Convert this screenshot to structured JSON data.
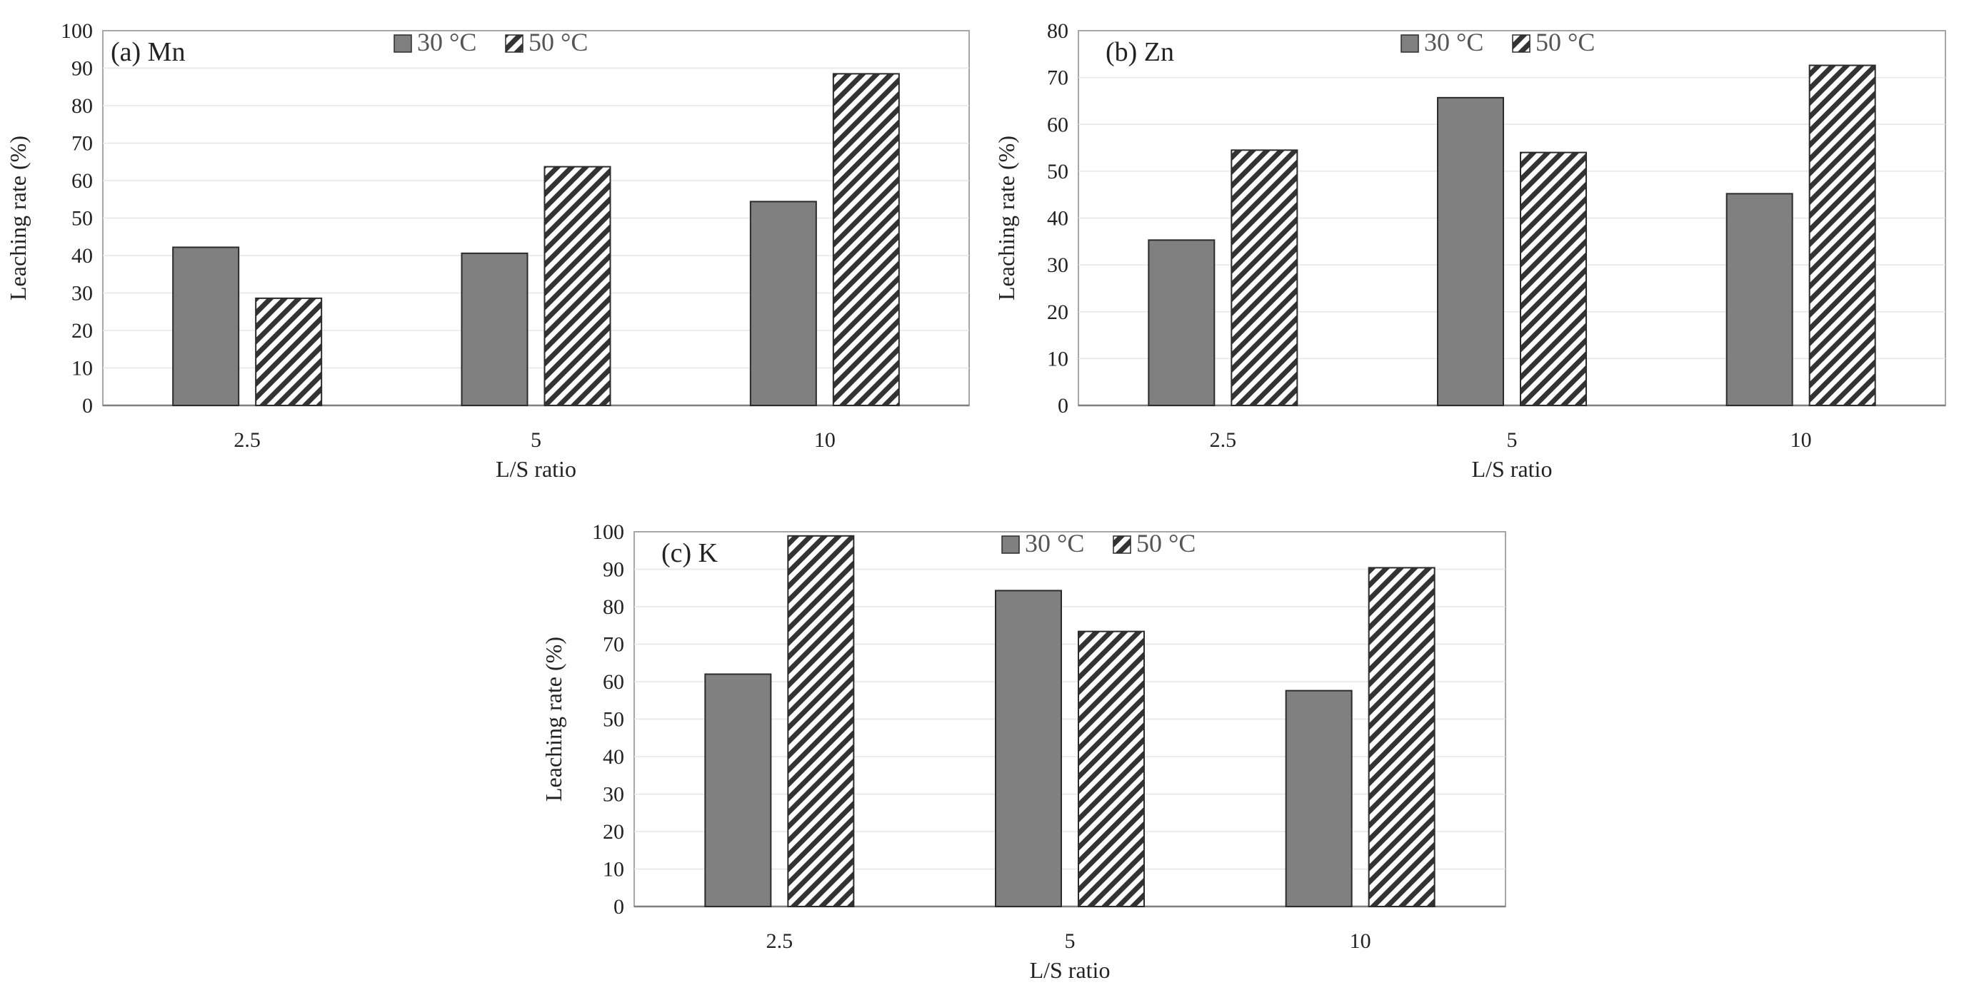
{
  "colors": {
    "bar_30": "#808080",
    "hatch": "#333333",
    "frame": "#a6a6a6",
    "grid": "#e6e6e6",
    "axis": "#7f7f7f"
  },
  "chart_data": [
    {
      "type": "bar",
      "id": "mn",
      "title": "(a) Mn",
      "categories": [
        "2.5",
        "5",
        "10"
      ],
      "series": [
        {
          "name": "30 °C",
          "pattern": "solid",
          "values": [
            42.2,
            40.6,
            54.4
          ]
        },
        {
          "name": "50 °C",
          "pattern": "hatched",
          "values": [
            28.6,
            63.7,
            88.5
          ]
        }
      ],
      "xlabel": "L/S ratio",
      "ylabel": "Leaching rate (%)",
      "ylim": [
        0,
        100
      ],
      "yticks": [
        0,
        10,
        20,
        30,
        40,
        50,
        60,
        70,
        80,
        90,
        100
      ],
      "grid": true,
      "legend": "top-center"
    },
    {
      "type": "bar",
      "id": "zn",
      "title": "(b) Zn",
      "categories": [
        "2.5",
        "5",
        "10"
      ],
      "series": [
        {
          "name": "30 °C",
          "pattern": "solid",
          "values": [
            35.3,
            65.7,
            45.2
          ]
        },
        {
          "name": "50 °C",
          "pattern": "hatched",
          "values": [
            54.5,
            54.0,
            72.6
          ]
        }
      ],
      "xlabel": "L/S ratio",
      "ylabel": "Leaching rate  (%)",
      "ylim": [
        0,
        80
      ],
      "yticks": [
        0,
        10,
        20,
        30,
        40,
        50,
        60,
        70,
        80
      ],
      "grid": true,
      "legend": "top-center"
    },
    {
      "type": "bar",
      "id": "k",
      "title": "(c) K",
      "categories": [
        "2.5",
        "5",
        "10"
      ],
      "series": [
        {
          "name": "30 °C",
          "pattern": "solid",
          "values": [
            62.0,
            84.3,
            57.6
          ]
        },
        {
          "name": "50 °C",
          "pattern": "hatched",
          "values": [
            98.9,
            73.4,
            90.4
          ]
        }
      ],
      "xlabel": "L/S ratio",
      "ylabel": "Leaching rate  (%)",
      "ylim": [
        0,
        100
      ],
      "yticks": [
        0,
        10,
        20,
        30,
        40,
        50,
        60,
        70,
        80,
        90,
        100
      ],
      "grid": true,
      "legend": "top-center"
    }
  ]
}
